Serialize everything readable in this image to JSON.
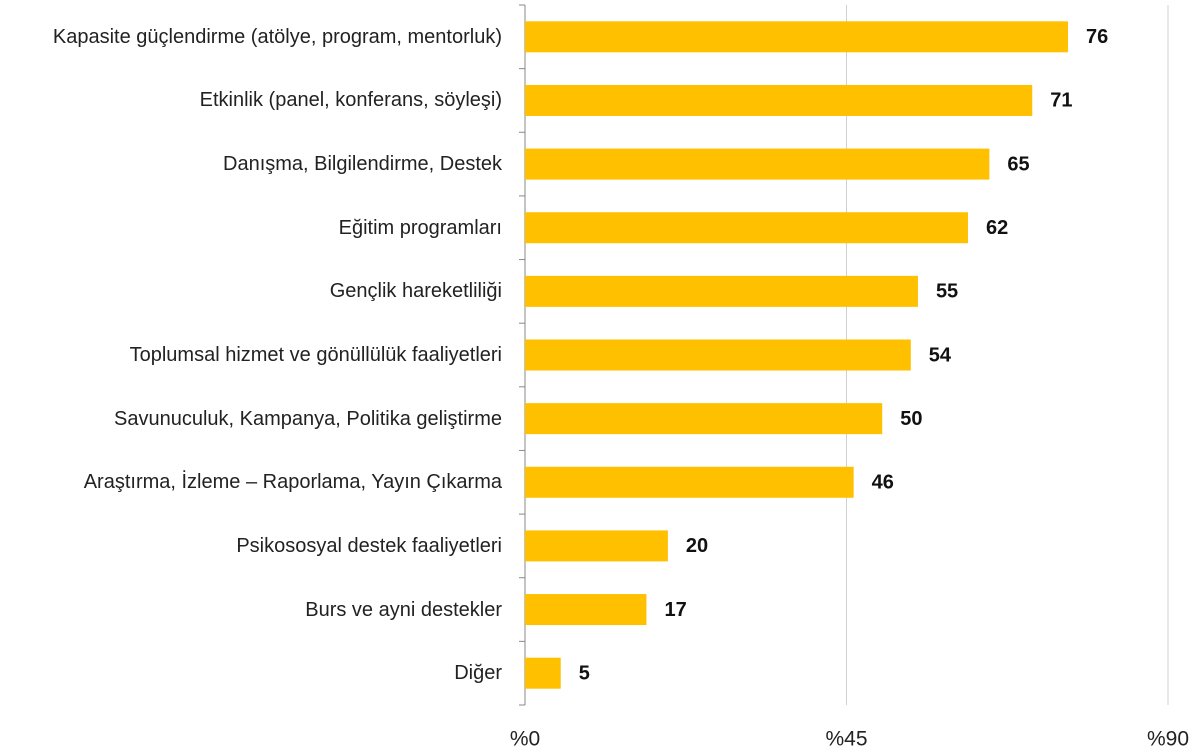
{
  "chart_data": {
    "type": "bar",
    "orientation": "horizontal",
    "categories": [
      "Kapasite güçlendirme (atölye, program, mentorluk)",
      "Etkinlik (panel, konferans, söyleşi)",
      "Danışma, Bilgilendirme, Destek",
      "Eğitim programları",
      "Gençlik hareketliliği",
      "Toplumsal hizmet ve gönüllülük faaliyetleri",
      "Savunuculuk, Kampanya, Politika geliştirme",
      "Araştırma, İzleme – Raporlama, Yayın Çıkarma",
      "Psikososyal destek faaliyetleri",
      "Burs ve ayni destekler",
      "Diğer"
    ],
    "values": [
      76,
      71,
      65,
      62,
      55,
      54,
      50,
      46,
      20,
      17,
      5
    ],
    "color": "#ffc000",
    "xlim": [
      0,
      90
    ],
    "xticks": [
      {
        "value": 0,
        "label": "%0"
      },
      {
        "value": 45,
        "label": "%45"
      },
      {
        "value": 90,
        "label": "%90"
      }
    ],
    "grid": true
  }
}
